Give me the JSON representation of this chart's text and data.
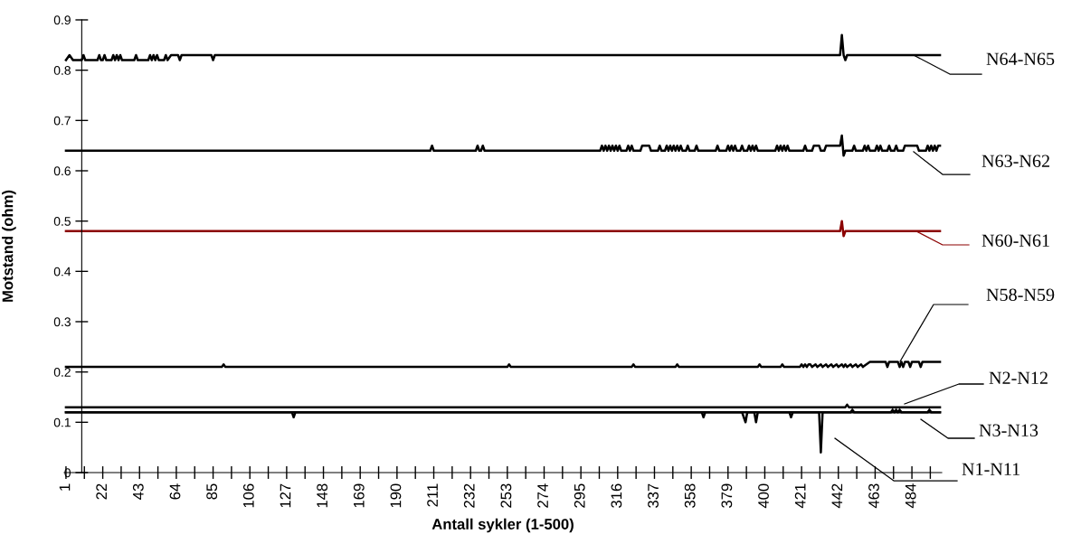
{
  "chart_data": {
    "type": "line",
    "xlabel": "Antall sykler (1-500)",
    "ylabel": "Motstand (ohm)",
    "xlim": [
      0,
      501
    ],
    "ylim": [
      0,
      0.9
    ],
    "xticks": [
      1,
      {
        "value": 11.5,
        "label": null
      },
      22,
      {
        "value": 32.5,
        "label": null
      },
      43,
      {
        "value": 53.5,
        "label": null
      },
      64,
      {
        "value": 74.5,
        "label": null
      },
      85,
      {
        "value": 95.5,
        "label": null
      },
      106,
      {
        "value": 116.5,
        "label": null
      },
      127,
      {
        "value": 137.5,
        "label": null
      },
      148,
      {
        "value": 158.5,
        "label": null
      },
      169,
      {
        "value": 179.5,
        "label": null
      },
      190,
      {
        "value": 200.5,
        "label": null
      },
      211,
      {
        "value": 221.5,
        "label": null
      },
      232,
      {
        "value": 242.5,
        "label": null
      },
      253,
      {
        "value": 263.5,
        "label": null
      },
      274,
      {
        "value": 284.5,
        "label": null
      },
      295,
      {
        "value": 305.5,
        "label": null
      },
      316,
      {
        "value": 326.5,
        "label": null
      },
      337,
      {
        "value": 347.5,
        "label": null
      },
      358,
      {
        "value": 368.5,
        "label": null
      },
      379,
      {
        "value": 389.5,
        "label": null
      },
      400,
      {
        "value": 410.5,
        "label": null
      },
      421,
      {
        "value": 431.5,
        "label": null
      },
      442,
      {
        "value": 452.5,
        "label": null
      },
      463,
      {
        "value": 473.5,
        "label": null
      },
      484,
      {
        "value": 494.5,
        "label": null
      }
    ],
    "yticks": [
      0,
      0.1,
      0.2,
      0.3,
      0.4,
      0.5,
      0.6,
      0.7,
      0.8,
      0.9
    ],
    "line_style": "solid",
    "marker": "none",
    "legend": "right",
    "series": [
      {
        "name": "N64-N65",
        "color": "#000000",
        "x": [
          1,
          3,
          5,
          10,
          11,
          12,
          19,
          20,
          21,
          22,
          23,
          24,
          27,
          28,
          29,
          30,
          31,
          32,
          33,
          34,
          40,
          41,
          42,
          48,
          49,
          50,
          51,
          52,
          53,
          54,
          55,
          57,
          58,
          59,
          61,
          65,
          66,
          67,
          84,
          85,
          86,
          443,
          444,
          445,
          446,
          447,
          500
        ],
        "values": [
          0.82,
          0.83,
          0.82,
          0.82,
          0.83,
          0.82,
          0.82,
          0.83,
          0.82,
          0.82,
          0.83,
          0.82,
          0.82,
          0.83,
          0.82,
          0.83,
          0.82,
          0.83,
          0.82,
          0.82,
          0.82,
          0.83,
          0.82,
          0.82,
          0.83,
          0.82,
          0.83,
          0.82,
          0.83,
          0.82,
          0.82,
          0.82,
          0.83,
          0.82,
          0.83,
          0.83,
          0.82,
          0.83,
          0.83,
          0.82,
          0.83,
          0.83,
          0.87,
          0.83,
          0.82,
          0.83,
          0.83
        ]
      },
      {
        "name": "N63-N62",
        "color": "#000000",
        "x": [
          1,
          209,
          210,
          211,
          235,
          236,
          237,
          238,
          239,
          240,
          306,
          307,
          308,
          309,
          310,
          311,
          312,
          313,
          314,
          315,
          316,
          317,
          318,
          321,
          322,
          323,
          324,
          325,
          329,
          330,
          334,
          335,
          339,
          340,
          341,
          343,
          344,
          345,
          346,
          347,
          348,
          349,
          350,
          351,
          352,
          353,
          355,
          356,
          357,
          360,
          361,
          362,
          372,
          373,
          374,
          378,
          379,
          380,
          381,
          382,
          383,
          384,
          386,
          387,
          388,
          390,
          391,
          392,
          393,
          394,
          395,
          396,
          406,
          407,
          408,
          409,
          410,
          411,
          412,
          413,
          414,
          422,
          423,
          424,
          427,
          428,
          431,
          432,
          434,
          435,
          443,
          444,
          445,
          446,
          450,
          451,
          452,
          456,
          457,
          458,
          459,
          460,
          463,
          464,
          465,
          466,
          467,
          470,
          471,
          472,
          474,
          475,
          476,
          479,
          480,
          487,
          488,
          492,
          493,
          494,
          495,
          496,
          497,
          498,
          499,
          500
        ],
        "values": [
          0.64,
          0.64,
          0.65,
          0.64,
          0.64,
          0.65,
          0.64,
          0.64,
          0.65,
          0.64,
          0.64,
          0.65,
          0.64,
          0.65,
          0.64,
          0.65,
          0.64,
          0.65,
          0.64,
          0.65,
          0.64,
          0.65,
          0.64,
          0.64,
          0.65,
          0.64,
          0.65,
          0.64,
          0.64,
          0.65,
          0.65,
          0.64,
          0.64,
          0.65,
          0.64,
          0.64,
          0.65,
          0.64,
          0.65,
          0.64,
          0.65,
          0.64,
          0.65,
          0.64,
          0.65,
          0.64,
          0.64,
          0.65,
          0.64,
          0.64,
          0.65,
          0.64,
          0.64,
          0.65,
          0.64,
          0.64,
          0.65,
          0.64,
          0.65,
          0.64,
          0.65,
          0.64,
          0.64,
          0.65,
          0.64,
          0.64,
          0.65,
          0.64,
          0.65,
          0.64,
          0.65,
          0.64,
          0.64,
          0.65,
          0.64,
          0.65,
          0.64,
          0.65,
          0.64,
          0.65,
          0.64,
          0.64,
          0.65,
          0.64,
          0.64,
          0.65,
          0.65,
          0.64,
          0.64,
          0.65,
          0.65,
          0.67,
          0.63,
          0.64,
          0.64,
          0.65,
          0.64,
          0.64,
          0.65,
          0.64,
          0.65,
          0.64,
          0.64,
          0.65,
          0.64,
          0.65,
          0.64,
          0.64,
          0.65,
          0.64,
          0.64,
          0.65,
          0.64,
          0.64,
          0.65,
          0.65,
          0.64,
          0.64,
          0.65,
          0.64,
          0.65,
          0.64,
          0.65,
          0.64,
          0.65,
          0.65
        ]
      },
      {
        "name": "N60-N61",
        "color": "#8b0000",
        "x": [
          1,
          443,
          444,
          445,
          446,
          500
        ],
        "values": [
          0.48,
          0.48,
          0.5,
          0.47,
          0.48,
          0.48
        ]
      },
      {
        "name": "N58-N59",
        "color": "#000000",
        "x": [
          1,
          90,
          91,
          92,
          253,
          254,
          255,
          324,
          325,
          326,
          349,
          350,
          351,
          396,
          397,
          398,
          409,
          410,
          411,
          420,
          421,
          422,
          423,
          424,
          425,
          426,
          427,
          429,
          430,
          432,
          433,
          435,
          436,
          438,
          439,
          441,
          442,
          444,
          445,
          446,
          447,
          449,
          450,
          452,
          453,
          455,
          456,
          458,
          460,
          469,
          470,
          471,
          476,
          477,
          478,
          479,
          480,
          482,
          483,
          484,
          488,
          489,
          490,
          500
        ],
        "values": [
          0.21,
          0.21,
          0.215,
          0.21,
          0.21,
          0.215,
          0.21,
          0.21,
          0.215,
          0.21,
          0.21,
          0.215,
          0.21,
          0.21,
          0.215,
          0.21,
          0.21,
          0.215,
          0.21,
          0.21,
          0.215,
          0.21,
          0.215,
          0.21,
          0.215,
          0.215,
          0.21,
          0.215,
          0.21,
          0.215,
          0.21,
          0.215,
          0.21,
          0.215,
          0.21,
          0.215,
          0.21,
          0.215,
          0.21,
          0.215,
          0.21,
          0.215,
          0.21,
          0.215,
          0.21,
          0.215,
          0.21,
          0.215,
          0.22,
          0.22,
          0.21,
          0.22,
          0.22,
          0.21,
          0.22,
          0.21,
          0.22,
          0.22,
          0.21,
          0.22,
          0.22,
          0.21,
          0.22,
          0.22
        ]
      },
      {
        "name": "N2-N12",
        "color": "#000000",
        "x": [
          1,
          446,
          447,
          448,
          500
        ],
        "values": [
          0.13,
          0.13,
          0.135,
          0.13,
          0.13
        ]
      },
      {
        "name": "N3-N13",
        "color": "#000000",
        "x": [
          1,
          130,
          131,
          132,
          364,
          365,
          366,
          387,
          388,
          389,
          390,
          394,
          395,
          396,
          414,
          415,
          416,
          449,
          450,
          451,
          472,
          473,
          474,
          475,
          476,
          477,
          478,
          493,
          494,
          495,
          500
        ],
        "values": [
          0.12,
          0.12,
          0.11,
          0.12,
          0.12,
          0.11,
          0.12,
          0.12,
          0.11,
          0.1,
          0.12,
          0.12,
          0.1,
          0.12,
          0.12,
          0.11,
          0.12,
          0.12,
          0.125,
          0.12,
          0.12,
          0.125,
          0.12,
          0.125,
          0.12,
          0.125,
          0.12,
          0.12,
          0.125,
          0.12,
          0.12
        ]
      },
      {
        "name": "N1-N11",
        "color": "#000000",
        "x": [
          1,
          431,
          432,
          433,
          500
        ],
        "values": [
          0.12,
          0.12,
          0.04,
          0.12,
          0.12
        ]
      }
    ]
  }
}
